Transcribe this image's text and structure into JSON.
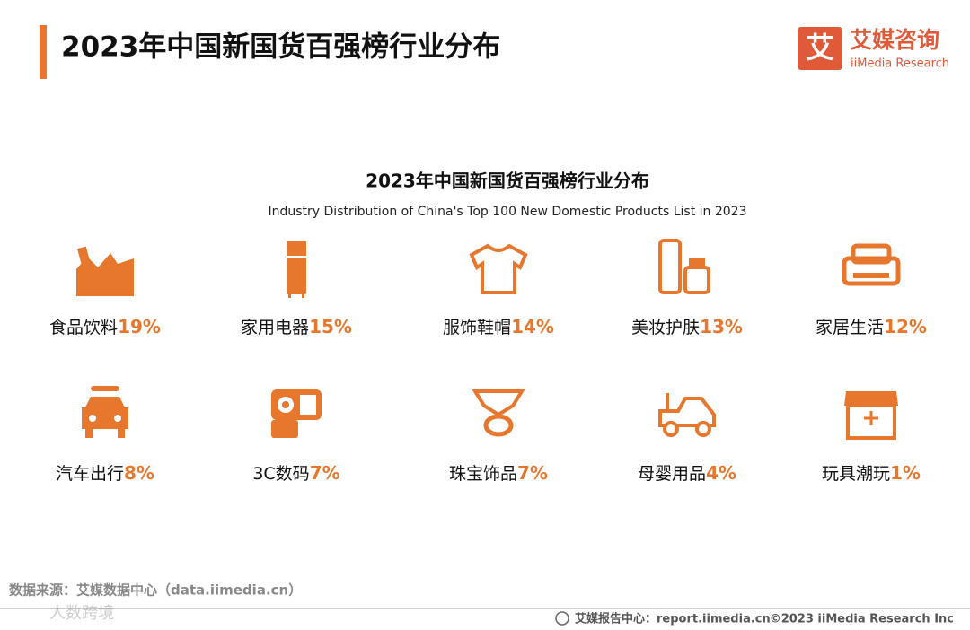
{
  "header": {
    "title": "2023年中国新国货百强榜行业分布",
    "logo_mark": "艾",
    "logo_name": "艾媒咨询",
    "logo_en": "iiMedia Research"
  },
  "infographic": {
    "title": "2023年中国新国货百强榜行业分布",
    "subtitle": "Industry Distribution of China's Top 100 New Domestic Products List in 2023",
    "items": [
      {
        "label": "食品饮料",
        "share": "19%"
      },
      {
        "label": "家用电器",
        "share": "15%"
      },
      {
        "label": "服饰鞋帽",
        "share": "14%"
      },
      {
        "label": "美妆护肤",
        "share": "13%"
      },
      {
        "label": "家居生活",
        "share": "12%"
      },
      {
        "label": "汽车出行",
        "share": "8%"
      },
      {
        "label": "3C数码",
        "share": "7%"
      },
      {
        "label": "珠宝饰品",
        "share": "7%"
      },
      {
        "label": "母婴用品",
        "share": "4%"
      },
      {
        "label": "玩具潮玩",
        "share": "1%"
      }
    ]
  },
  "footer": {
    "source": "数据来源：艾媒数据中心（data.iimedia.cn）",
    "watermark": "人数跨境",
    "report": "艾媒报告中心：report.iimedia.cn",
    "copyright": "©2023  iiMedia Research  Inc"
  }
}
